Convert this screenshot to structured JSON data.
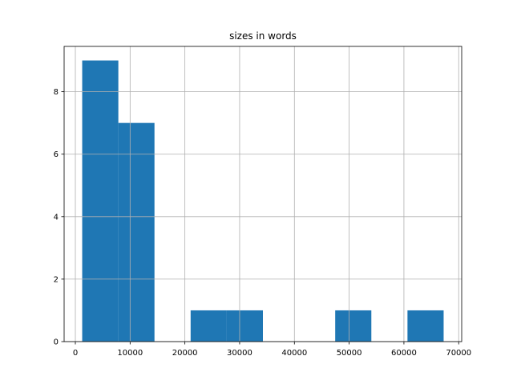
{
  "chart_data": {
    "type": "histogram",
    "title": "sizes in words",
    "bins": [
      1250,
      7850,
      14450,
      21050,
      27650,
      34250,
      40850,
      47450,
      54050,
      60650,
      67250
    ],
    "values": [
      9,
      7,
      0,
      1,
      1,
      0,
      0,
      1,
      0,
      1
    ],
    "color": "#1f77b4",
    "xlim": [
      -2050,
      70550
    ],
    "xticks": [
      0,
      10000,
      20000,
      30000,
      40000,
      50000,
      60000,
      70000
    ],
    "ylim": [
      0,
      9.45
    ],
    "yticks": [
      0,
      2,
      4,
      6,
      8
    ],
    "grid": true
  }
}
